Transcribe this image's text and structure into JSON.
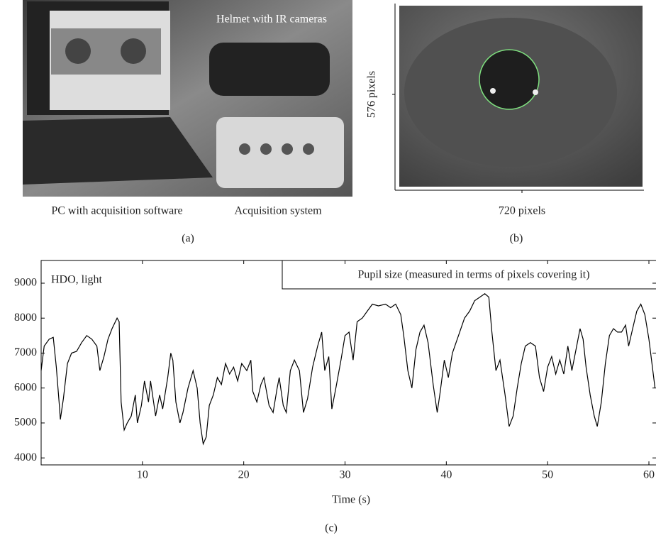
{
  "panel_a": {
    "labels": [
      "Helmet with IR cameras",
      "PC with acquisition software",
      "Acquisition system"
    ],
    "caption": "(a)"
  },
  "panel_b": {
    "ylabel": "576 pixels",
    "xlabel": "720 pixels",
    "caption": "(b)"
  },
  "chart_data": {
    "type": "line",
    "annotation": "HDO, light",
    "xlabel": "Time (s)",
    "caption": "(c)",
    "xlim": [
      0,
      60.7
    ],
    "ylim": [
      3800,
      9650
    ],
    "xticks": [
      10,
      20,
      30,
      40,
      50,
      60
    ],
    "yticks": [
      4000,
      5000,
      6000,
      7000,
      8000,
      9000
    ],
    "x": [
      0,
      0.3,
      0.8,
      1.2,
      1.5,
      1.8,
      1.9,
      2.2,
      2.6,
      3,
      3.5,
      4,
      4.5,
      5,
      5.5,
      5.8,
      6.2,
      6.6,
      7,
      7.5,
      7.7,
      7.9,
      8.2,
      8.5,
      8.9,
      9.3,
      9.5,
      9.9,
      10.2,
      10.6,
      10.8,
      11.3,
      11.7,
      12,
      12.5,
      12.8,
      13,
      13.3,
      13.7,
      14,
      14.5,
      15,
      15.4,
      15.7,
      16,
      16.3,
      16.6,
      17,
      17.4,
      17.8,
      18.2,
      18.6,
      19,
      19.4,
      19.8,
      20.3,
      20.7,
      20.9,
      21.3,
      21.7,
      22,
      22.5,
      22.9,
      23.3,
      23.5,
      23.9,
      24.2,
      24.6,
      25,
      25.5,
      25.9,
      26.3,
      26.8,
      27.3,
      27.7,
      28,
      28.4,
      28.7,
      29.1,
      29.6,
      30,
      30.4,
      30.8,
      31.2,
      31.7,
      32.2,
      32.7,
      33.3,
      34,
      34.5,
      35,
      35.5,
      35.8,
      36.2,
      36.6,
      37,
      37.4,
      37.8,
      38.2,
      38.7,
      39.1,
      39.4,
      39.8,
      40.2,
      40.6,
      41.2,
      41.8,
      42.3,
      42.8,
      43.3,
      43.8,
      44.2,
      44.5,
      44.9,
      45.3,
      45.8,
      46.2,
      46.6,
      47,
      47.4,
      47.8,
      48.3,
      48.8,
      49.2,
      49.6,
      50,
      50.4,
      50.8,
      51.2,
      51.6,
      52,
      52.4,
      52.8,
      53.2,
      53.5,
      53.8,
      54.2,
      54.6,
      54.9,
      55.3,
      55.7,
      56.1,
      56.5,
      56.9,
      57.3,
      57.7,
      58,
      58.4,
      58.8,
      59.2,
      59.6,
      60,
      60.3,
      60.6
    ],
    "series": [
      {
        "name": "Pupil size (measured in terms of pixels covering it)",
        "color": "#000000",
        "values": [
          6500,
          7200,
          7400,
          7450,
          6600,
          5500,
          5100,
          5700,
          6700,
          7000,
          7050,
          7300,
          7500,
          7400,
          7200,
          6500,
          6900,
          7400,
          7700,
          8000,
          7900,
          5600,
          4800,
          5000,
          5200,
          5800,
          5000,
          5500,
          6200,
          5600,
          6200,
          5200,
          5800,
          5400,
          6300,
          7000,
          6800,
          5600,
          5000,
          5300,
          6000,
          6500,
          6000,
          5000,
          4400,
          4600,
          5500,
          5800,
          6300,
          6100,
          6700,
          6400,
          6600,
          6200,
          6700,
          6500,
          6800,
          5900,
          5600,
          6100,
          6300,
          5500,
          5300,
          6000,
          6300,
          5500,
          5300,
          6500,
          6800,
          6500,
          5300,
          5700,
          6600,
          7200,
          7600,
          6500,
          6900,
          5400,
          6000,
          6800,
          7500,
          7600,
          6800,
          7900,
          8000,
          8200,
          8400,
          8350,
          8400,
          8300,
          8400,
          8100,
          7500,
          6500,
          6000,
          7100,
          7600,
          7800,
          7300,
          6100,
          5300,
          5900,
          6800,
          6300,
          7000,
          7500,
          8000,
          8200,
          8500,
          8600,
          8700,
          8600,
          7600,
          6500,
          6800,
          5800,
          4900,
          5200,
          6000,
          6700,
          7200,
          7300,
          7200,
          6300,
          5900,
          6600,
          6900,
          6400,
          6800,
          6400,
          7200,
          6500,
          7100,
          7700,
          7400,
          6600,
          5800,
          5200,
          4900,
          5600,
          6700,
          7500,
          7700,
          7600,
          7600,
          7800,
          7200,
          7700,
          8200,
          8400,
          8100,
          7400,
          6700,
          6000
        ]
      }
    ]
  }
}
